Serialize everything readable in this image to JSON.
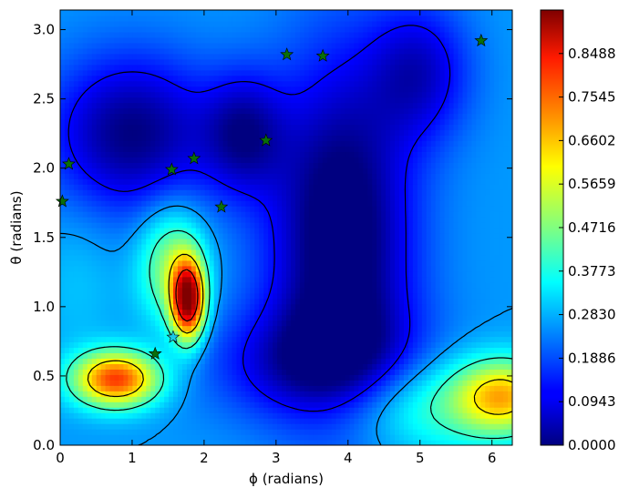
{
  "chart_data": {
    "type": "heatmap",
    "title": "",
    "xlabel": "ϕ (radians)",
    "ylabel": "θ (radians)",
    "xlim": [
      0,
      6.283
    ],
    "ylim": [
      0,
      3.1416
    ],
    "x_ticks": [
      "0",
      "1",
      "2",
      "3",
      "4",
      "5",
      "6"
    ],
    "y_ticks": [
      "0.0",
      "0.5",
      "1.0",
      "1.5",
      "2.0",
      "2.5",
      "3.0"
    ],
    "colormap": "jet",
    "colorbar": {
      "min": 0.0,
      "max": 0.9431,
      "ticks": [
        "0.0000",
        "0.0943",
        "0.1886",
        "0.2830",
        "0.3773",
        "0.4716",
        "0.5659",
        "0.6602",
        "0.7545",
        "0.8488"
      ]
    },
    "field_peaks": [
      {
        "phi": 1.78,
        "theta": 1.05,
        "value": 0.92,
        "sx": 0.16,
        "sy": 0.2
      },
      {
        "phi": 0.78,
        "theta": 0.48,
        "value": 0.78,
        "sx": 0.42,
        "sy": 0.14
      },
      {
        "phi": 6.15,
        "theta": 0.36,
        "value": 0.58,
        "sx": 0.45,
        "sy": 0.18
      },
      {
        "phi": 1.55,
        "theta": 1.3,
        "value": 0.5,
        "sx": 0.32,
        "sy": 0.3
      },
      {
        "phi": 4.9,
        "theta": 0.3,
        "value": 0.45,
        "sx": 1.2,
        "sy": 0.25
      },
      {
        "phi": 0.25,
        "theta": 1.2,
        "value": 0.3,
        "sx": 0.4,
        "sy": 0.4
      }
    ],
    "field_valleys": [
      {
        "phi": 3.9,
        "theta": 1.5,
        "value": 0.32,
        "sx": 0.7,
        "sy": 0.9
      },
      {
        "phi": 1.0,
        "theta": 2.25,
        "value": 0.26,
        "sx": 0.8,
        "sy": 0.4
      },
      {
        "phi": 2.55,
        "theta": 2.25,
        "value": 0.2,
        "sx": 0.4,
        "sy": 0.3
      },
      {
        "phi": 3.6,
        "theta": 0.55,
        "value": 0.22,
        "sx": 1.0,
        "sy": 0.3
      },
      {
        "phi": 5.0,
        "theta": 2.7,
        "value": 0.18,
        "sx": 0.5,
        "sy": 0.35
      }
    ],
    "markers": [
      {
        "phi": 0.03,
        "theta": 1.76,
        "color": "#0a6e0a",
        "kind": "star"
      },
      {
        "phi": 0.12,
        "theta": 2.03,
        "color": "#0a6e0a",
        "kind": "star"
      },
      {
        "phi": 1.55,
        "theta": 1.99,
        "color": "#0a6e0a",
        "kind": "star"
      },
      {
        "phi": 1.86,
        "theta": 2.07,
        "color": "#0a6e0a",
        "kind": "star"
      },
      {
        "phi": 2.24,
        "theta": 1.72,
        "color": "#0a6e0a",
        "kind": "star"
      },
      {
        "phi": 2.86,
        "theta": 2.2,
        "color": "#0a6e0a",
        "kind": "star"
      },
      {
        "phi": 3.15,
        "theta": 2.82,
        "color": "#0a6e0a",
        "kind": "star"
      },
      {
        "phi": 3.65,
        "theta": 2.81,
        "color": "#0a6e0a",
        "kind": "star"
      },
      {
        "phi": 5.85,
        "theta": 2.92,
        "color": "#0a6e0a",
        "kind": "star"
      },
      {
        "phi": 1.32,
        "theta": 0.66,
        "color": "#0a6e0a",
        "kind": "star"
      },
      {
        "phi": 1.57,
        "theta": 0.78,
        "color": "#19c8e6",
        "kind": "star"
      }
    ],
    "grid": false,
    "legend": "none"
  }
}
